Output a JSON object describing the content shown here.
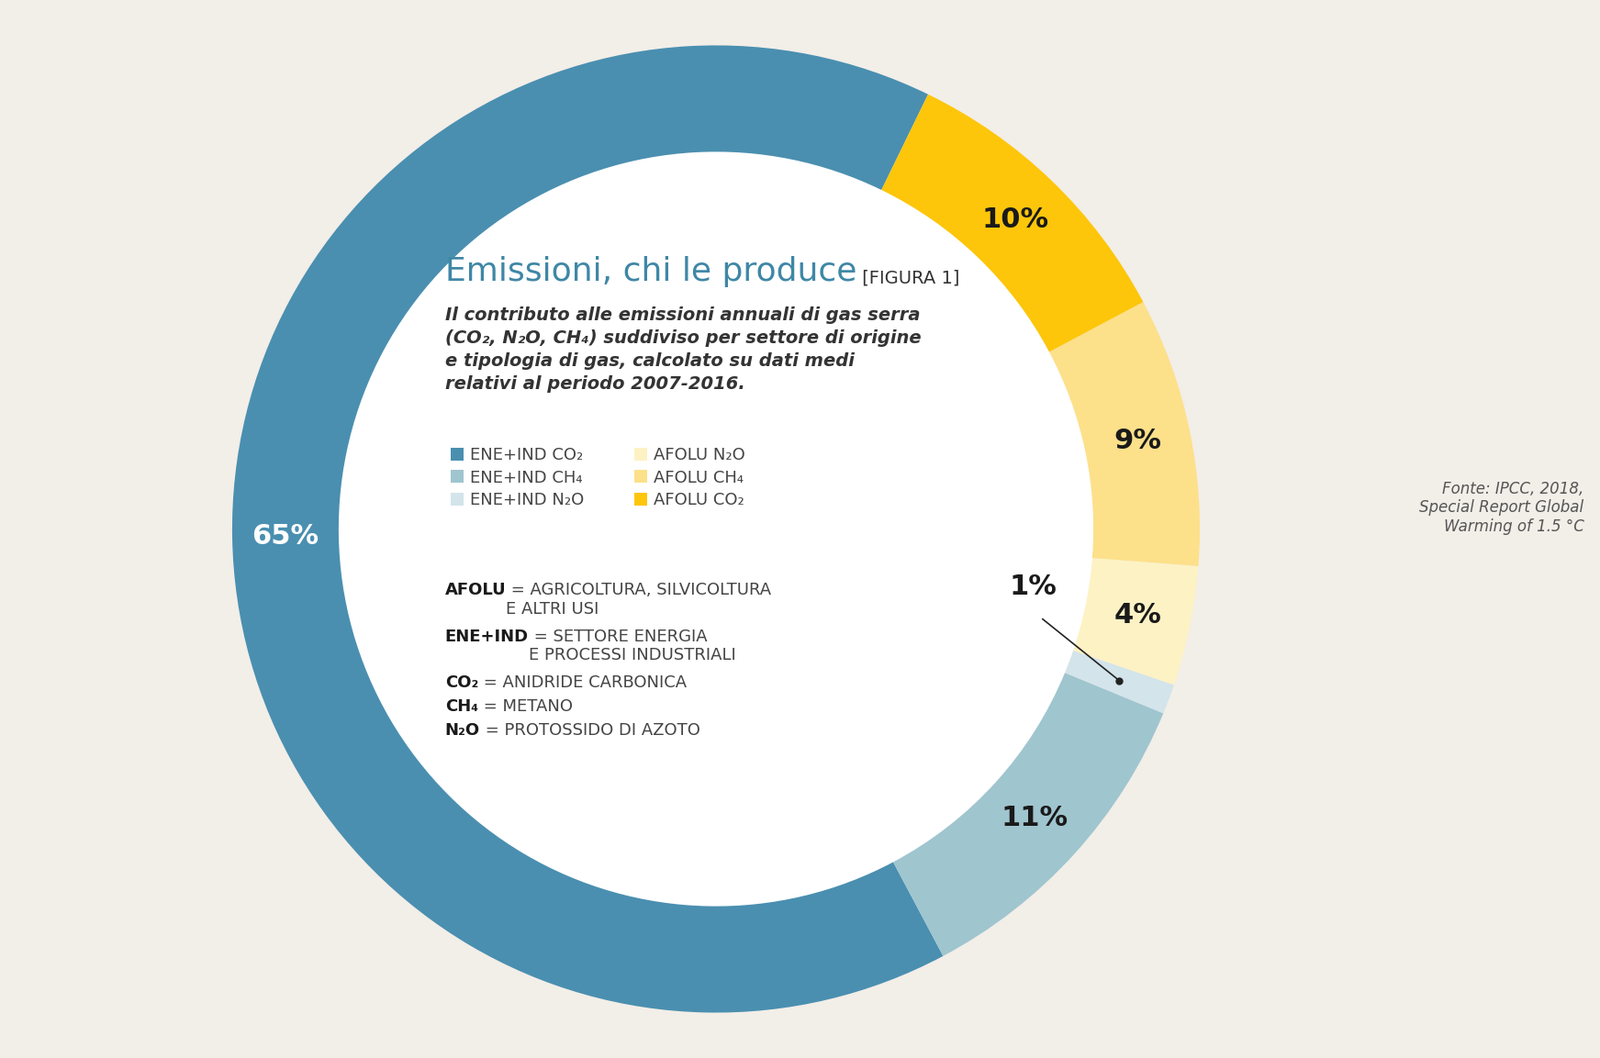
{
  "chart_data": {
    "type": "donut",
    "title": "Emissioni, chi le produce",
    "title_tag": "[FIGURA 1]",
    "subtitle": "Il contributo alle emissioni annuali di gas serra\n(CO₂, N₂O, CH₄) suddiviso per settore di origine\ne tipologia di gas, calcolato su dati medi\nrelativi al periodo 2007-2016.",
    "categories": [
      "ENE+IND CO₂",
      "ENE+IND CH₄",
      "ENE+IND N₂O",
      "AFOLU N₂O",
      "AFOLU CH₄",
      "AFOLU CO₂"
    ],
    "values": [
      65,
      11,
      1,
      4,
      9,
      10
    ],
    "value_labels": [
      "65%",
      "11%",
      "1%",
      "4%",
      "9%",
      "10%"
    ],
    "colors": [
      "#4a8fb0",
      "#9fc5cf",
      "#d3e4ea",
      "#fdf2c4",
      "#fde08a",
      "#fdc60a"
    ],
    "data_labels": true,
    "legend": "upper left",
    "definitions": [
      {
        "term": "AFOLU",
        "text": "= AGRICOLTURA, SILVICOLTURA\nE ALTRI USI"
      },
      {
        "term": "ENE+IND",
        "text": "= SETTORE ENERGIA\nE PROCESSI INDUSTRIALI"
      },
      {
        "term": "CO₂",
        "text": "= ANIDRIDE CARBONICA"
      },
      {
        "term": "CH₄",
        "text": "= METANO"
      },
      {
        "term": "N₂O",
        "text": "= PROTOSSIDO DI AZOTO"
      }
    ],
    "source": "Fonte: IPCC, 2018,\nSpecial Report Global\nWarming of 1.5 °C"
  }
}
